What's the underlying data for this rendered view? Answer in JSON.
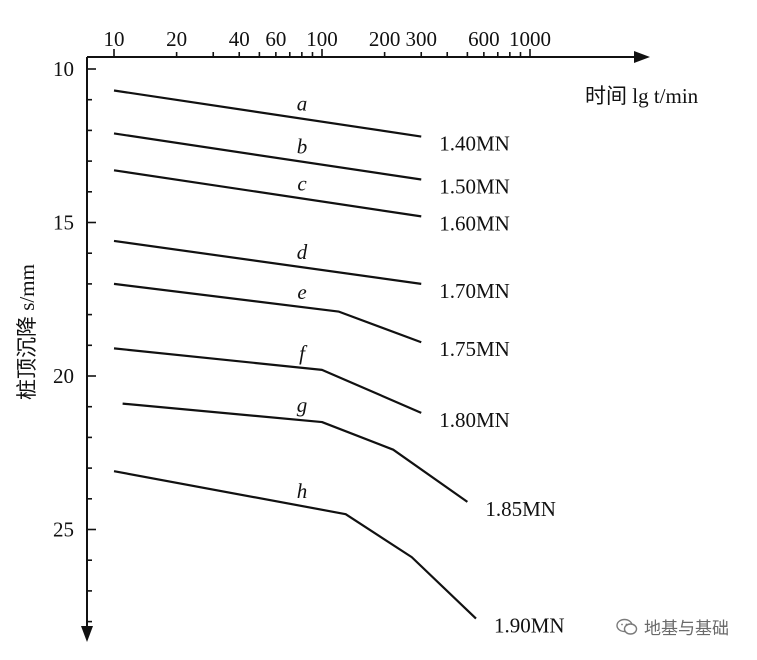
{
  "chart_data": {
    "type": "line",
    "xscale": "log",
    "xlim": [
      10,
      1000
    ],
    "ylim": [
      10,
      28
    ],
    "y_inverted": true,
    "xlabel": "时间 lg t/min",
    "ylabel": "桩顶沉降 s/mm",
    "x_ticks": [
      10,
      20,
      40,
      60,
      100,
      200,
      300,
      600,
      1000
    ],
    "y_ticks": [
      10,
      15,
      20,
      25
    ],
    "series": [
      {
        "letter": "a",
        "load": "1.40MN",
        "points": [
          [
            10,
            10.7
          ],
          [
            300,
            12.2
          ]
        ]
      },
      {
        "letter": "b",
        "load": "1.50MN",
        "points": [
          [
            10,
            12.1
          ],
          [
            300,
            13.6
          ]
        ]
      },
      {
        "letter": "c",
        "load": "1.60MN",
        "points": [
          [
            10,
            13.3
          ],
          [
            300,
            14.8
          ]
        ]
      },
      {
        "letter": "d",
        "load": "1.70MN",
        "points": [
          [
            10,
            15.6
          ],
          [
            300,
            17.0
          ]
        ]
      },
      {
        "letter": "e",
        "load": "1.75MN",
        "points": [
          [
            10,
            17.0
          ],
          [
            120,
            17.9
          ],
          [
            300,
            18.9
          ]
        ]
      },
      {
        "letter": "f",
        "load": "1.80MN",
        "points": [
          [
            10,
            19.1
          ],
          [
            100,
            19.8
          ],
          [
            300,
            21.2
          ]
        ]
      },
      {
        "letter": "g",
        "load": "1.85MN",
        "points": [
          [
            11,
            20.9
          ],
          [
            100,
            21.5
          ],
          [
            220,
            22.4
          ],
          [
            500,
            24.1
          ]
        ]
      },
      {
        "letter": "h",
        "load": "1.90MN",
        "points": [
          [
            10,
            23.1
          ],
          [
            130,
            24.5
          ],
          [
            270,
            25.9
          ],
          [
            550,
            27.9
          ]
        ]
      }
    ]
  },
  "watermark": {
    "text": "地基与基础",
    "icon": "wechat-icon"
  }
}
